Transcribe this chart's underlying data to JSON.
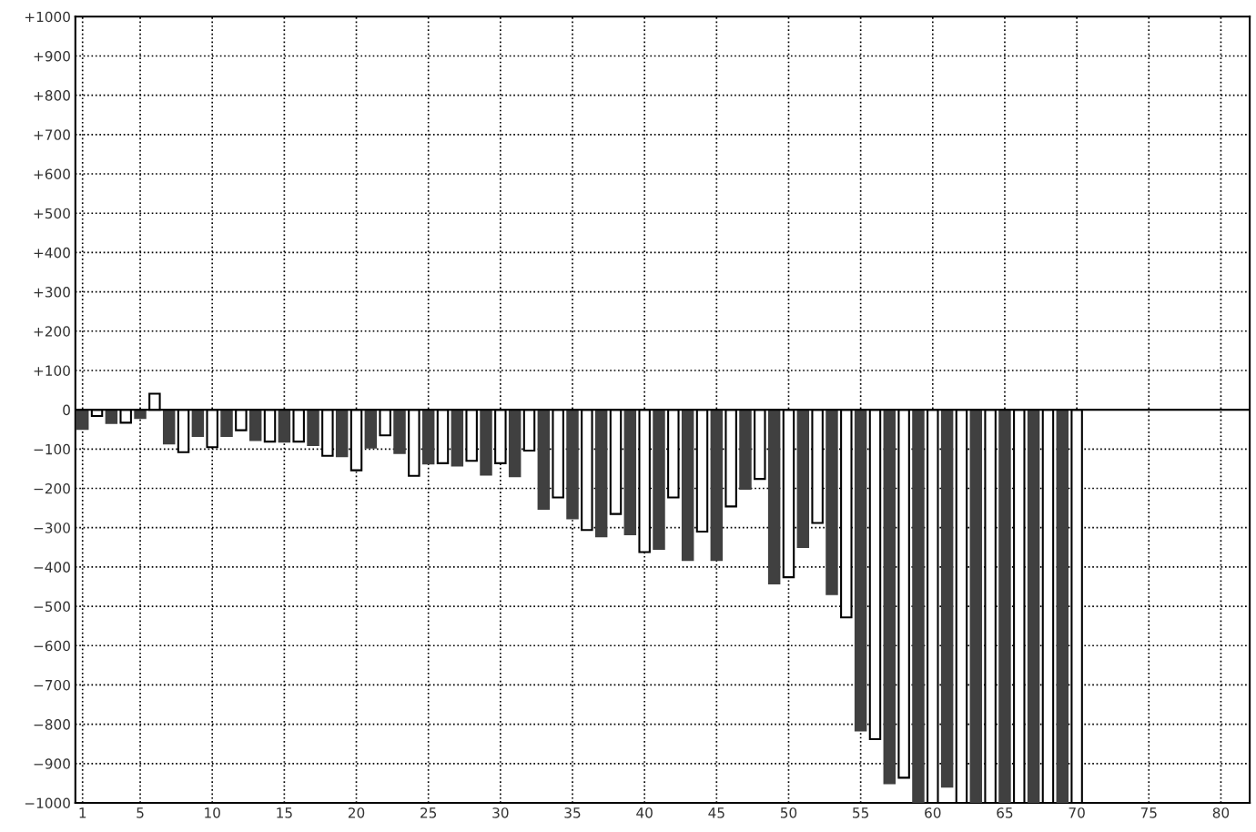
{
  "chart_data": {
    "type": "bar",
    "x": [
      1,
      2,
      3,
      4,
      5,
      6,
      7,
      8,
      9,
      10,
      11,
      12,
      13,
      14,
      15,
      16,
      17,
      18,
      19,
      20,
      21,
      22,
      23,
      24,
      25,
      26,
      27,
      28,
      29,
      30,
      31,
      32,
      33,
      34,
      35,
      36,
      37,
      38,
      39,
      40,
      41,
      42,
      43,
      44,
      45,
      46,
      47,
      48,
      49,
      50,
      51,
      52,
      53,
      54,
      55,
      56,
      57,
      58,
      59,
      60,
      61,
      62,
      63,
      64,
      65,
      66,
      67,
      68,
      69,
      70
    ],
    "values": [
      -49,
      -16,
      -34,
      -33,
      -21,
      41,
      -86,
      -108,
      -67,
      -95,
      -67,
      -52,
      -77,
      -81,
      -81,
      -81,
      -90,
      -117,
      -118,
      -154,
      -96,
      -65,
      -110,
      -168,
      -137,
      -136,
      -142,
      -130,
      -165,
      -136,
      -169,
      -104,
      -252,
      -223,
      -276,
      -306,
      -322,
      -265,
      -317,
      -362,
      -354,
      -223,
      -382,
      -310,
      -382,
      -246,
      -201,
      -176,
      -442,
      -426,
      -349,
      -288,
      -469,
      -528,
      -816,
      -838,
      -950,
      -936,
      -1000,
      -1000,
      -959,
      -1000,
      -1000,
      -1000,
      -1000,
      -1000,
      -1000,
      -1000,
      -1000,
      -1000
    ],
    "colors": [
      "#404040",
      "#ffffff",
      "#404040",
      "#ffffff",
      "#404040",
      "#ffffff",
      "#404040",
      "#ffffff",
      "#404040",
      "#ffffff",
      "#404040",
      "#ffffff",
      "#404040",
      "#ffffff",
      "#404040",
      "#ffffff",
      "#404040",
      "#ffffff",
      "#404040",
      "#ffffff",
      "#404040",
      "#ffffff",
      "#404040",
      "#ffffff",
      "#404040",
      "#ffffff",
      "#404040",
      "#ffffff",
      "#404040",
      "#ffffff",
      "#404040",
      "#ffffff",
      "#404040",
      "#ffffff",
      "#404040",
      "#ffffff",
      "#404040",
      "#ffffff",
      "#404040",
      "#ffffff",
      "#404040",
      "#ffffff",
      "#404040",
      "#ffffff",
      "#404040",
      "#ffffff",
      "#404040",
      "#ffffff",
      "#404040",
      "#ffffff",
      "#404040",
      "#ffffff",
      "#404040",
      "#ffffff",
      "#404040",
      "#ffffff",
      "#404040",
      "#ffffff",
      "#404040",
      "#ffffff",
      "#404040",
      "#ffffff",
      "#404040",
      "#ffffff",
      "#404040",
      "#ffffff",
      "#404040",
      "#ffffff",
      "#404040",
      "#ffffff"
    ],
    "xlim": [
      0.5,
      82
    ],
    "xticks": [
      1,
      5,
      10,
      15,
      20,
      25,
      30,
      35,
      40,
      45,
      50,
      55,
      60,
      65,
      70,
      75,
      80
    ],
    "ylim": [
      -1000,
      1000
    ],
    "yticks": [
      {
        "value": 1000,
        "label": "+1000"
      },
      {
        "value": 900,
        "label": "+900"
      },
      {
        "value": 800,
        "label": "+800"
      },
      {
        "value": 700,
        "label": "+700"
      },
      {
        "value": 600,
        "label": "+600"
      },
      {
        "value": 500,
        "label": "+500"
      },
      {
        "value": 400,
        "label": "+400"
      },
      {
        "value": 300,
        "label": "+300"
      },
      {
        "value": 200,
        "label": "+200"
      },
      {
        "value": 100,
        "label": "+100"
      },
      0,
      {
        "value": -100,
        "label": "−100"
      },
      {
        "value": -200,
        "label": "−200"
      },
      {
        "value": -300,
        "label": "−300"
      },
      {
        "value": -400,
        "label": "−400"
      },
      {
        "value": -500,
        "label": "−500"
      },
      {
        "value": -600,
        "label": "−600"
      },
      {
        "value": -700,
        "label": "−700"
      },
      {
        "value": -800,
        "label": "−800"
      },
      {
        "value": -900,
        "label": "−900"
      },
      {
        "value": -1000,
        "label": "−1000"
      }
    ],
    "ref_lines": [
      {
        "axis": "y",
        "value": 0,
        "color": "#000000",
        "line_style": "solid"
      }
    ],
    "grid": true
  }
}
